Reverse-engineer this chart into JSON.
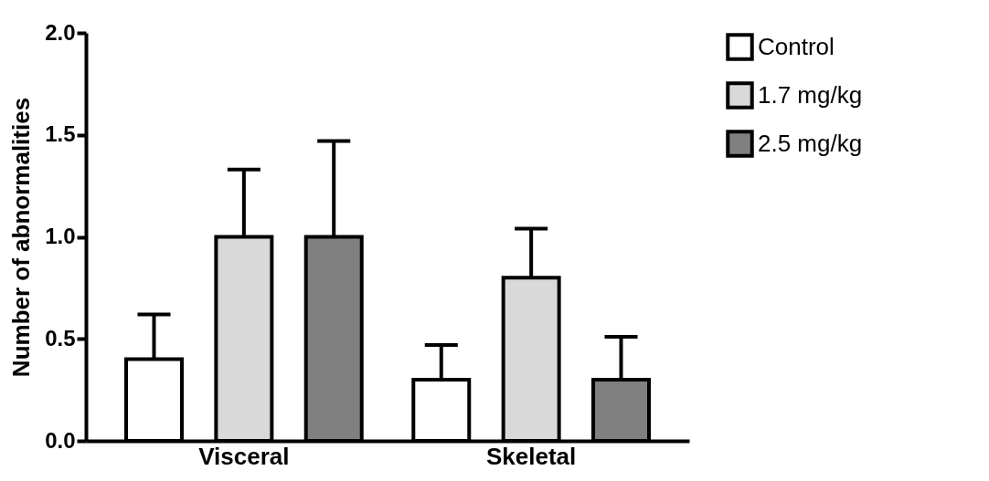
{
  "chart_data": {
    "type": "bar",
    "ylabel": "Number of abnormalities",
    "categories": [
      "Visceral",
      "Skeletal"
    ],
    "series": [
      {
        "name": "Control",
        "color": "#ffffff",
        "values": [
          0.4,
          0.3
        ],
        "errors": [
          [
            0.4,
            0.62
          ],
          [
            0.3,
            0.47
          ]
        ]
      },
      {
        "name": "1.7 mg/kg",
        "color": "#d9d9d9",
        "values": [
          1.0,
          0.8
        ],
        "errors": [
          [
            1.0,
            1.33
          ],
          [
            0.8,
            1.04
          ]
        ]
      },
      {
        "name": "2.5 mg/kg",
        "color": "#808080",
        "values": [
          1.0,
          0.3
        ],
        "errors": [
          [
            1.0,
            1.47
          ],
          [
            0.3,
            0.51
          ]
        ]
      }
    ],
    "ylim": [
      0,
      2
    ],
    "yticks": [
      {
        "value": 0,
        "label": "0.0"
      },
      {
        "value": 0.5,
        "label": "0.5"
      },
      {
        "value": 1,
        "label": "1.0"
      },
      {
        "value": 1.5,
        "label": "1.5"
      },
      {
        "value": 2,
        "label": "2.0"
      }
    ],
    "legend": "top right"
  }
}
